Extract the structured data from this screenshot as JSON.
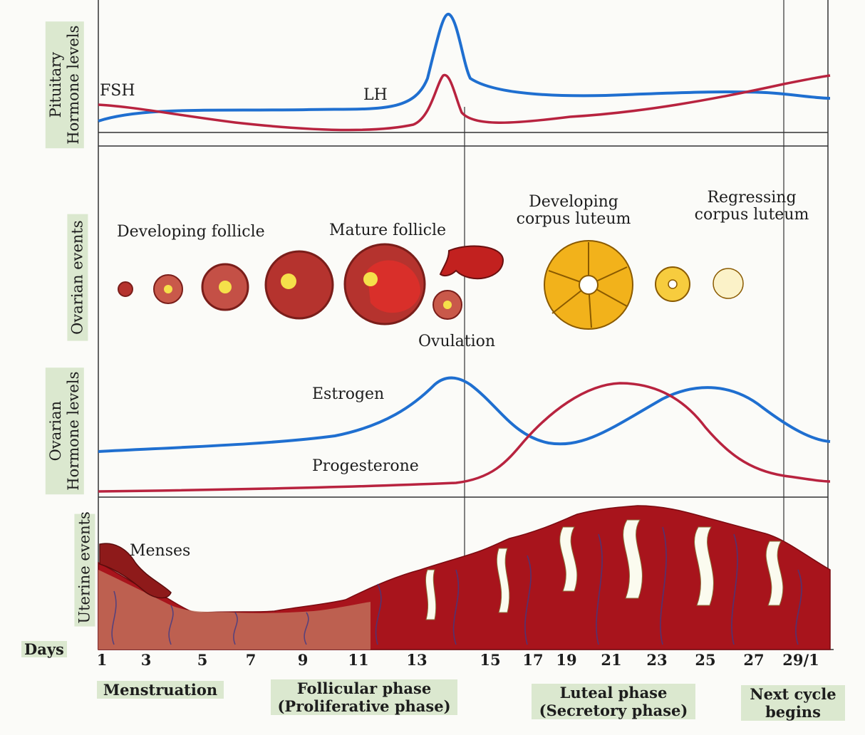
{
  "side_labels": {
    "pituitary": [
      "Pituitary",
      "Hormone levels"
    ],
    "ovarian_events": "Ovarian events",
    "ovarian_hormones": [
      "Ovarian",
      "Hormone levels"
    ],
    "uterine_events": "Uterine events"
  },
  "curve_labels": {
    "fsh": "FSH",
    "lh": "LH",
    "estrogen": "Estrogen",
    "progesterone": "Progesterone"
  },
  "ovarian_labels": {
    "developing_follicle": "Developing follicle",
    "mature_follicle": "Mature follicle",
    "ovulation": "Ovulation",
    "developing_corpus_luteum": [
      "Developing",
      "corpus luteum"
    ],
    "regressing_corpus_luteum": [
      "Regressing",
      "corpus luteum"
    ]
  },
  "uterine_labels": {
    "menses": "Menses"
  },
  "days": {
    "label": "Days",
    "ticks": [
      "1",
      "3",
      "5",
      "7",
      "9",
      "11",
      "13",
      "15",
      "17",
      "19",
      "21",
      "23",
      "25",
      "27",
      "29/1"
    ]
  },
  "phases": {
    "menstruation": "Menstruation",
    "follicular": [
      "Follicular phase",
      "(Proliferative phase)"
    ],
    "luteal": [
      "Luteal phase",
      "(Secretory phase)"
    ],
    "next_cycle": [
      "Next cycle",
      "begins"
    ]
  },
  "colors": {
    "blue_curve": "#1f6fd0",
    "red_curve": "#b8233f",
    "tissue": "#a8141c",
    "follicle": "#b5332e",
    "corpus": "#f2b21b"
  }
}
